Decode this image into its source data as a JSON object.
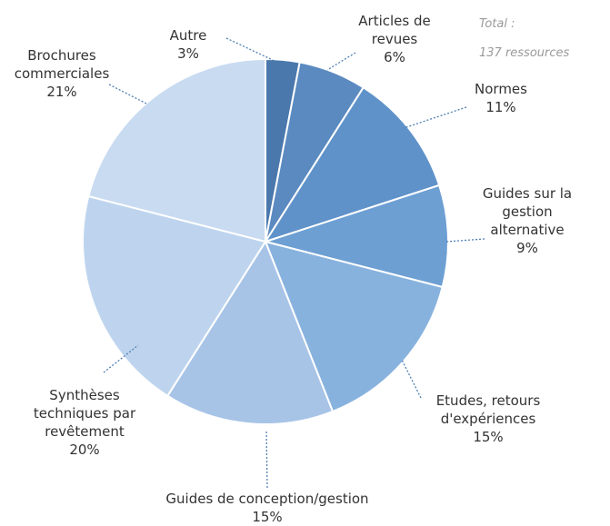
{
  "chart_data": {
    "type": "pie",
    "total_label": [
      "Total :",
      "137 ressources"
    ],
    "slices": [
      {
        "label": [
          "Autre"
        ],
        "value": 3,
        "value_label": "3%",
        "color": "#4a78ad"
      },
      {
        "label": [
          "Articles de",
          "revues"
        ],
        "value": 6,
        "value_label": "6%",
        "color": "#5a8ac0"
      },
      {
        "label": [
          "Normes"
        ],
        "value": 11,
        "value_label": "11%",
        "color": "#5f92c9"
      },
      {
        "label": [
          "Guides sur la",
          "gestion",
          "alternative"
        ],
        "value": 9,
        "value_label": "9%",
        "color": "#6d9fd3"
      },
      {
        "label": [
          "Etudes, retours",
          "d'expériences"
        ],
        "value": 15,
        "value_label": "15%",
        "color": "#88b2de"
      },
      {
        "label": [
          "Guides de conception/gestion"
        ],
        "value": 15,
        "value_label": "15%",
        "color": "#a7c4e7"
      },
      {
        "label": [
          "Synthèses",
          "techniques par",
          "revêtement"
        ],
        "value": 20,
        "value_label": "20%",
        "color": "#bed4ee"
      },
      {
        "label": [
          "Brochures",
          "commerciales"
        ],
        "value": 21,
        "value_label": "21%",
        "color": "#c8dbf1"
      }
    ]
  }
}
